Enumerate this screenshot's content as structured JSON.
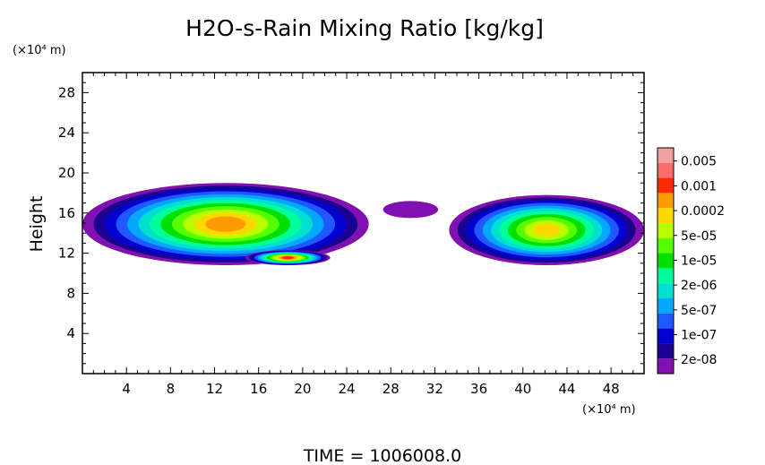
{
  "chart_data": {
    "type": "heatmap",
    "title": "H2O-s-Rain Mixing Ratio [kg/kg]",
    "ylabel": "Height",
    "x_unit": "(×10⁴ m)",
    "y_unit": "(×10⁴ m)",
    "xlim": [
      0,
      51
    ],
    "ylim": [
      0,
      30
    ],
    "x_ticks": [
      4,
      8,
      12,
      16,
      20,
      24,
      28,
      32,
      36,
      40,
      44,
      48
    ],
    "y_ticks": [
      4,
      8,
      12,
      16,
      20,
      24,
      28
    ],
    "time_label": "TIME",
    "time_value": "1006008.0",
    "colorbar": {
      "levels": [
        "0.005",
        "0.001",
        "0.0002",
        "5e-05",
        "1e-05",
        "2e-06",
        "5e-07",
        "1e-07",
        "2e-08"
      ],
      "colors": [
        "#f5a0a0",
        "#ff6a6a",
        "#ff2a00",
        "#ff9a00",
        "#ffd800",
        "#b8ff00",
        "#55ff00",
        "#00e000",
        "#00ff9a",
        "#00e0d0",
        "#00a8ff",
        "#2058ff",
        "#0000d0",
        "#1a0090",
        "#8010b0"
      ]
    },
    "regions": [
      {
        "x": [
          1.5,
          6
        ],
        "y": [
          12.5,
          14.8
        ],
        "peak_level": 12
      },
      {
        "x": [
          0,
          26
        ],
        "y": [
          10.8,
          19
        ],
        "peak_level": 3
      },
      {
        "x": [
          14.8,
          22.5
        ],
        "y": [
          10.8,
          12.3
        ],
        "peak_level": 2
      },
      {
        "x": [
          27.3,
          32.3
        ],
        "y": [
          15.5,
          17.2
        ],
        "peak_level": 14
      },
      {
        "x": [
          33.3,
          51
        ],
        "y": [
          10.8,
          17.8
        ],
        "peak_level": 4
      }
    ]
  }
}
